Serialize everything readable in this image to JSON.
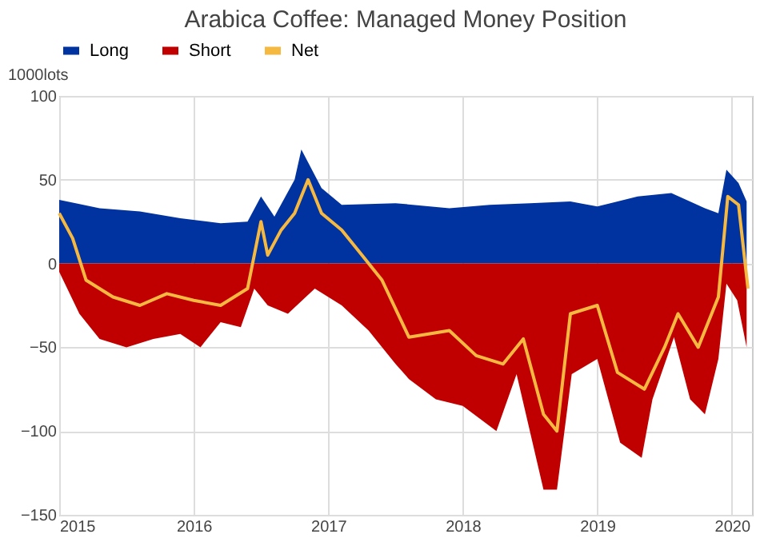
{
  "chart_data": {
    "type": "area",
    "title": "Arabica Coffee: Managed Money Position",
    "ylabel": "1000lots",
    "xlim": [
      2015,
      2020.15
    ],
    "xticks": [
      2015,
      2016,
      2017,
      2018,
      2019,
      2020
    ],
    "ylim": [
      -150,
      100
    ],
    "yticks": [
      -150,
      -100,
      -50,
      0,
      50,
      100
    ],
    "grid": true,
    "legend": "top",
    "series": [
      {
        "name": "Long",
        "color": "#0033a0",
        "x": [
          2015.0,
          2015.3,
          2015.6,
          2015.9,
          2016.2,
          2016.4,
          2016.5,
          2016.6,
          2016.75,
          2016.8,
          2016.95,
          2017.1,
          2017.5,
          2017.9,
          2018.2,
          2018.5,
          2018.8,
          2019.0,
          2019.3,
          2019.55,
          2019.8,
          2019.9,
          2019.96,
          2020.05,
          2020.11
        ],
        "values": [
          38,
          33,
          31,
          27,
          24,
          25,
          40,
          28,
          50,
          68,
          45,
          35,
          36,
          33,
          35,
          36,
          37,
          34,
          40,
          42,
          33,
          30,
          56,
          48,
          37
        ]
      },
      {
        "name": "Short",
        "color": "#c00000",
        "x": [
          2015.0,
          2015.15,
          2015.3,
          2015.5,
          2015.7,
          2015.9,
          2016.05,
          2016.2,
          2016.35,
          2016.45,
          2016.55,
          2016.7,
          2016.9,
          2017.1,
          2017.3,
          2017.5,
          2017.6,
          2017.8,
          2018.0,
          2018.25,
          2018.4,
          2018.6,
          2018.7,
          2018.81,
          2019.0,
          2019.17,
          2019.33,
          2019.41,
          2019.57,
          2019.69,
          2019.8,
          2019.9,
          2019.96,
          2020.04,
          2020.11
        ],
        "values": [
          -5,
          -30,
          -45,
          -50,
          -45,
          -42,
          -50,
          -35,
          -38,
          -15,
          -25,
          -30,
          -15,
          -25,
          -40,
          -60,
          -69,
          -81,
          -85,
          -100,
          -66,
          -135,
          -135,
          -66,
          -57,
          -107,
          -116,
          -81,
          -44,
          -81,
          -90,
          -57,
          -12,
          -22,
          -50
        ]
      },
      {
        "name": "Net",
        "color": "#f5b942",
        "type": "line",
        "x": [
          2015.0,
          2015.1,
          2015.2,
          2015.4,
          2015.6,
          2015.8,
          2016.0,
          2016.2,
          2016.4,
          2016.5,
          2016.55,
          2016.65,
          2016.75,
          2016.85,
          2016.95,
          2017.1,
          2017.25,
          2017.4,
          2017.6,
          2017.9,
          2018.1,
          2018.3,
          2018.45,
          2018.6,
          2018.7,
          2018.8,
          2019.0,
          2019.15,
          2019.35,
          2019.5,
          2019.6,
          2019.75,
          2019.9,
          2019.97,
          2020.05,
          2020.12
        ],
        "values": [
          30,
          15,
          -10,
          -20,
          -25,
          -18,
          -22,
          -25,
          -15,
          25,
          5,
          20,
          30,
          50,
          30,
          20,
          5,
          -10,
          -44,
          -40,
          -55,
          -60,
          -45,
          -90,
          -100,
          -30,
          -25,
          -65,
          -75,
          -50,
          -30,
          -50,
          -20,
          40,
          35,
          -15
        ]
      }
    ]
  }
}
